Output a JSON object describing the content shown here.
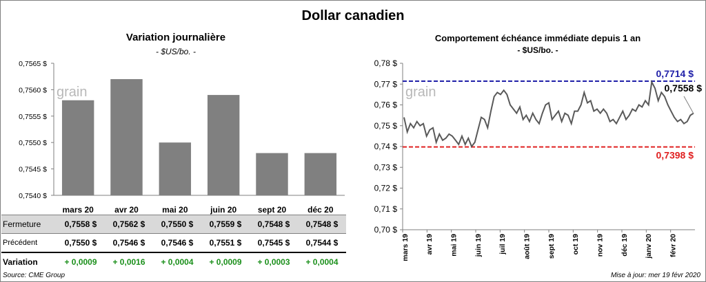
{
  "title": "Dollar canadien",
  "left": {
    "title": "Variation  journalière",
    "subtitle": "- $US/bo. -",
    "chart_data": {
      "type": "bar",
      "categories": [
        "mars 20",
        "avr 20",
        "mai 20",
        "juin 20",
        "sept 20",
        "déc 20"
      ],
      "values": [
        0.7558,
        0.7562,
        0.755,
        0.7559,
        0.7548,
        0.7548
      ],
      "ylim": [
        0.754,
        0.7565
      ],
      "yticks": [
        "0,7540 $",
        "0,7545 $",
        "0,7550 $",
        "0,7555 $",
        "0,7560 $",
        "0,7565 $"
      ],
      "bar_color": "#808080"
    },
    "table": {
      "rows": [
        {
          "label": "Fermeture",
          "values": [
            "0,7558  $",
            "0,7562  $",
            "0,7550  $",
            "0,7559  $",
            "0,7548  $",
            "0,7548  $"
          ]
        },
        {
          "label": "Précédent",
          "values": [
            "0,7550  $",
            "0,7546  $",
            "0,7546  $",
            "0,7551  $",
            "0,7545  $",
            "0,7544  $"
          ]
        },
        {
          "label": "Variation",
          "values": [
            "+ 0,0009",
            "+ 0,0016",
            "+ 0,0004",
            "+ 0,0009",
            "+ 0,0003",
            "+ 0,0004"
          ]
        }
      ]
    }
  },
  "right": {
    "title": "Comportement échéance immédiate depuis 1 an",
    "subtitle": "- $US/bo. -",
    "chart_data": {
      "type": "line",
      "ylim": [
        0.7,
        0.78
      ],
      "yticks": [
        "0,70 $",
        "0,71 $",
        "0,72 $",
        "0,73 $",
        "0,74 $",
        "0,75 $",
        "0,76 $",
        "0,77 $",
        "0,78 $"
      ],
      "xticks": [
        "mars 19",
        "avr 19",
        "mai 19",
        "juin 19",
        "juil 19",
        "août 19",
        "sept 19",
        "oct 19",
        "nov 19",
        "déc 19",
        "janv 20",
        "févr 20"
      ],
      "values": [
        0.754,
        0.747,
        0.751,
        0.749,
        0.752,
        0.75,
        0.751,
        0.745,
        0.748,
        0.749,
        0.742,
        0.746,
        0.743,
        0.744,
        0.746,
        0.745,
        0.743,
        0.741,
        0.745,
        0.741,
        0.744,
        0.74,
        0.742,
        0.748,
        0.754,
        0.753,
        0.749,
        0.757,
        0.764,
        0.766,
        0.765,
        0.767,
        0.765,
        0.76,
        0.758,
        0.756,
        0.759,
        0.753,
        0.755,
        0.752,
        0.756,
        0.753,
        0.751,
        0.756,
        0.76,
        0.761,
        0.753,
        0.755,
        0.757,
        0.752,
        0.756,
        0.755,
        0.751,
        0.757,
        0.757,
        0.76,
        0.766,
        0.761,
        0.762,
        0.757,
        0.758,
        0.756,
        0.758,
        0.756,
        0.752,
        0.753,
        0.751,
        0.754,
        0.757,
        0.753,
        0.755,
        0.758,
        0.757,
        0.76,
        0.759,
        0.762,
        0.76,
        0.771,
        0.768,
        0.762,
        0.766,
        0.764,
        0.76,
        0.757,
        0.754,
        0.752,
        0.753,
        0.751,
        0.752,
        0.755,
        0.756
      ],
      "high": {
        "value": 0.7714,
        "label": "0,7714 $",
        "color": "#1f1fa8"
      },
      "low": {
        "value": 0.7398,
        "label": "0,7398 $",
        "color": "#e02020"
      },
      "last": {
        "value": 0.7558,
        "label": "0,7558 $"
      },
      "line_color": "#595959"
    }
  },
  "brand": "grain",
  "source": "Source: CME Group",
  "updated": "Mise à jour: mer 19 févr 2020"
}
